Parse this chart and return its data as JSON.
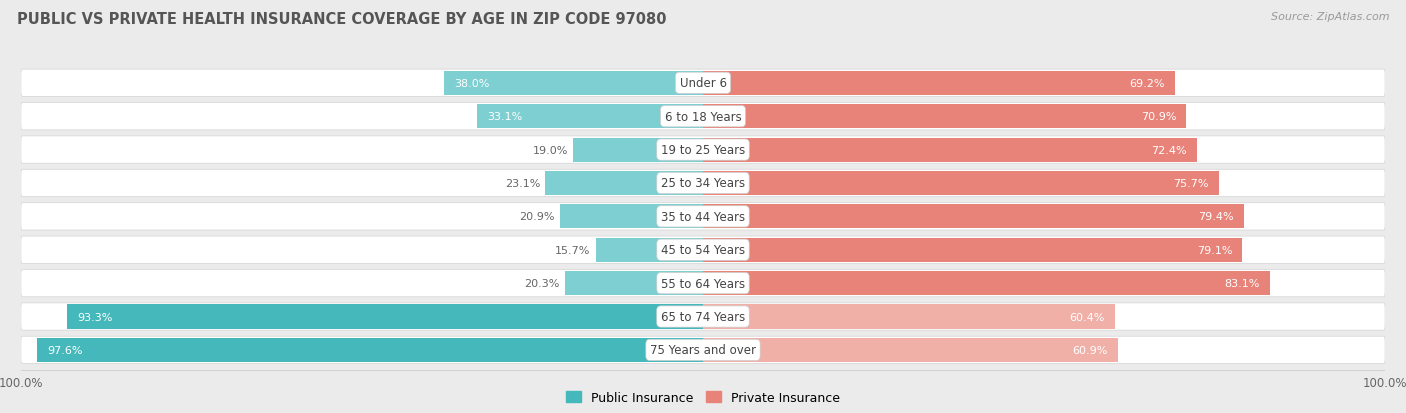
{
  "title": "PUBLIC VS PRIVATE HEALTH INSURANCE COVERAGE BY AGE IN ZIP CODE 97080",
  "source": "Source: ZipAtlas.com",
  "categories": [
    "Under 6",
    "6 to 18 Years",
    "19 to 25 Years",
    "25 to 34 Years",
    "35 to 44 Years",
    "45 to 54 Years",
    "55 to 64 Years",
    "65 to 74 Years",
    "75 Years and over"
  ],
  "public_values": [
    38.0,
    33.1,
    19.0,
    23.1,
    20.9,
    15.7,
    20.3,
    93.3,
    97.6
  ],
  "private_values": [
    69.2,
    70.9,
    72.4,
    75.7,
    79.4,
    79.1,
    83.1,
    60.4,
    60.9
  ],
  "public_color_strong": "#45b8bb",
  "public_color_light": "#7dcfd1",
  "private_color_strong": "#e8837a",
  "private_color_light": "#f0b0a8",
  "bg_color": "#ebebeb",
  "row_bg_color": "#ffffff",
  "title_color": "#555555",
  "source_color": "#999999",
  "value_color_white": "#ffffff",
  "value_color_dark": "#666666",
  "center_label_color": "#444444"
}
